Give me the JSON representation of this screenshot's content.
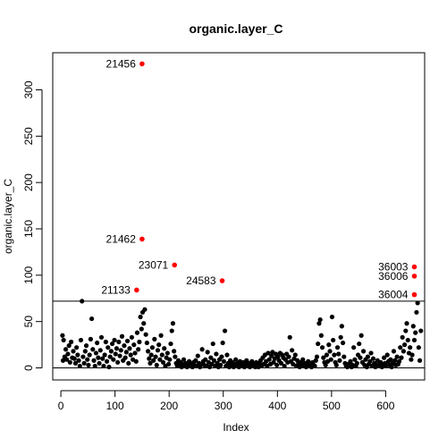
{
  "chart_data": {
    "type": "scatter",
    "title": "organic.layer_C",
    "xlabel": "Index",
    "ylabel": "organic.layer_C",
    "xlim": [
      -15,
      672
    ],
    "ylim": [
      -13,
      340
    ],
    "x_ticks": [
      0,
      100,
      200,
      300,
      400,
      500,
      600
    ],
    "y_ticks": [
      0,
      50,
      100,
      150,
      200,
      250,
      300
    ],
    "grid": false,
    "hlines": [
      0,
      72
    ],
    "colors": {
      "normal": "#000000",
      "outlier": "#ff0000"
    },
    "outliers": [
      {
        "x": 150,
        "y": 328,
        "label": "21456"
      },
      {
        "x": 150,
        "y": 139,
        "label": "21462"
      },
      {
        "x": 210,
        "y": 111,
        "label": "23071"
      },
      {
        "x": 298,
        "y": 94,
        "label": "24583"
      },
      {
        "x": 140,
        "y": 84,
        "label": "21133"
      },
      {
        "x": 653,
        "y": 109,
        "label": "36003"
      },
      {
        "x": 653,
        "y": 99,
        "label": "36006"
      },
      {
        "x": 653,
        "y": 79,
        "label": "36004"
      }
    ],
    "points": [
      [
        3,
        35
      ],
      [
        4,
        8
      ],
      [
        5,
        30
      ],
      [
        7,
        12
      ],
      [
        9,
        20
      ],
      [
        11,
        9
      ],
      [
        13,
        15
      ],
      [
        15,
        24
      ],
      [
        17,
        6
      ],
      [
        19,
        28
      ],
      [
        21,
        11
      ],
      [
        23,
        18
      ],
      [
        25,
        10
      ],
      [
        27,
        5
      ],
      [
        29,
        22
      ],
      [
        31,
        14
      ],
      [
        33,
        8
      ],
      [
        35,
        2
      ],
      [
        37,
        30
      ],
      [
        39,
        72
      ],
      [
        41,
        12
      ],
      [
        43,
        5
      ],
      [
        45,
        18
      ],
      [
        47,
        24
      ],
      [
        49,
        9
      ],
      [
        51,
        3
      ],
      [
        53,
        14
      ],
      [
        55,
        31
      ],
      [
        57,
        53
      ],
      [
        59,
        20
      ],
      [
        61,
        8
      ],
      [
        63,
        2
      ],
      [
        65,
        16
      ],
      [
        67,
        27
      ],
      [
        69,
        11
      ],
      [
        71,
        5
      ],
      [
        73,
        19
      ],
      [
        75,
        33
      ],
      [
        77,
        10
      ],
      [
        79,
        2
      ],
      [
        81,
        14
      ],
      [
        83,
        28
      ],
      [
        85,
        7
      ],
      [
        87,
        22
      ],
      [
        89,
        1
      ],
      [
        91,
        12
      ],
      [
        93,
        18
      ],
      [
        95,
        26
      ],
      [
        97,
        9
      ],
      [
        99,
        30
      ],
      [
        101,
        15
      ],
      [
        103,
        21
      ],
      [
        105,
        6
      ],
      [
        107,
        28
      ],
      [
        109,
        13
      ],
      [
        111,
        19
      ],
      [
        113,
        34
      ],
      [
        115,
        8
      ],
      [
        117,
        24
      ],
      [
        119,
        11
      ],
      [
        121,
        17
      ],
      [
        123,
        29
      ],
      [
        125,
        5
      ],
      [
        127,
        21
      ],
      [
        129,
        14
      ],
      [
        131,
        33
      ],
      [
        133,
        9
      ],
      [
        135,
        25
      ],
      [
        137,
        16
      ],
      [
        139,
        7
      ],
      [
        141,
        38
      ],
      [
        143,
        20
      ],
      [
        145,
        28
      ],
      [
        147,
        55
      ],
      [
        149,
        42
      ],
      [
        151,
        60
      ],
      [
        153,
        48
      ],
      [
        155,
        63
      ],
      [
        157,
        36
      ],
      [
        159,
        27
      ],
      [
        161,
        18
      ],
      [
        163,
        10
      ],
      [
        165,
        5
      ],
      [
        167,
        14
      ],
      [
        169,
        22
      ],
      [
        171,
        8
      ],
      [
        173,
        31
      ],
      [
        175,
        12
      ],
      [
        177,
        3
      ],
      [
        179,
        19
      ],
      [
        181,
        25
      ],
      [
        183,
        9
      ],
      [
        185,
        35
      ],
      [
        187,
        14
      ],
      [
        189,
        6
      ],
      [
        191,
        21
      ],
      [
        193,
        2
      ],
      [
        195,
        11
      ],
      [
        197,
        16
      ],
      [
        199,
        4
      ],
      [
        201,
        9
      ],
      [
        203,
        26
      ],
      [
        205,
        40
      ],
      [
        207,
        48
      ],
      [
        209,
        18
      ],
      [
        211,
        12
      ],
      [
        213,
        5
      ],
      [
        215,
        2
      ],
      [
        217,
        8
      ],
      [
        219,
        3
      ],
      [
        221,
        6
      ],
      [
        223,
        1
      ],
      [
        225,
        4
      ],
      [
        227,
        9
      ],
      [
        229,
        2
      ],
      [
        231,
        5
      ],
      [
        233,
        1
      ],
      [
        235,
        3
      ],
      [
        237,
        7
      ],
      [
        239,
        2
      ],
      [
        241,
        4
      ],
      [
        243,
        1
      ],
      [
        245,
        6
      ],
      [
        247,
        3
      ],
      [
        249,
        8
      ],
      [
        251,
        2
      ],
      [
        253,
        13
      ],
      [
        255,
        5
      ],
      [
        257,
        1
      ],
      [
        259,
        4
      ],
      [
        261,
        20
      ],
      [
        263,
        7
      ],
      [
        265,
        3
      ],
      [
        267,
        9
      ],
      [
        269,
        2
      ],
      [
        271,
        17
      ],
      [
        273,
        6
      ],
      [
        275,
        1
      ],
      [
        277,
        11
      ],
      [
        279,
        4
      ],
      [
        281,
        26
      ],
      [
        283,
        8
      ],
      [
        285,
        2
      ],
      [
        287,
        15
      ],
      [
        289,
        5
      ],
      [
        291,
        1
      ],
      [
        293,
        9
      ],
      [
        295,
        3
      ],
      [
        297,
        12
      ],
      [
        299,
        27
      ],
      [
        301,
        7
      ],
      [
        303,
        40
      ],
      [
        305,
        2
      ],
      [
        307,
        14
      ],
      [
        309,
        5
      ],
      [
        311,
        1
      ],
      [
        313,
        8
      ],
      [
        315,
        3
      ],
      [
        317,
        6
      ],
      [
        319,
        1
      ],
      [
        321,
        4
      ],
      [
        323,
        9
      ],
      [
        325,
        2
      ],
      [
        327,
        5
      ],
      [
        329,
        1
      ],
      [
        331,
        7
      ],
      [
        333,
        3
      ],
      [
        335,
        2
      ],
      [
        337,
        6
      ],
      [
        339,
        1
      ],
      [
        341,
        4
      ],
      [
        343,
        8
      ],
      [
        345,
        2
      ],
      [
        347,
        5
      ],
      [
        349,
        1
      ],
      [
        351,
        3
      ],
      [
        353,
        7
      ],
      [
        355,
        2
      ],
      [
        357,
        4
      ],
      [
        359,
        1
      ],
      [
        361,
        6
      ],
      [
        363,
        3
      ],
      [
        365,
        1
      ],
      [
        367,
        5
      ],
      [
        369,
        8
      ],
      [
        371,
        2
      ],
      [
        373,
        11
      ],
      [
        375,
        4
      ],
      [
        377,
        14
      ],
      [
        379,
        7
      ],
      [
        381,
        2
      ],
      [
        383,
        16
      ],
      [
        385,
        9
      ],
      [
        387,
        4
      ],
      [
        389,
        13
      ],
      [
        391,
        17
      ],
      [
        393,
        6
      ],
      [
        395,
        10
      ],
      [
        397,
        15
      ],
      [
        399,
        3
      ],
      [
        401,
        12
      ],
      [
        403,
        8
      ],
      [
        405,
        16
      ],
      [
        407,
        5
      ],
      [
        409,
        14
      ],
      [
        411,
        11
      ],
      [
        413,
        2
      ],
      [
        415,
        9
      ],
      [
        417,
        15
      ],
      [
        419,
        6
      ],
      [
        421,
        12
      ],
      [
        423,
        33
      ],
      [
        425,
        7
      ],
      [
        427,
        19
      ],
      [
        429,
        4
      ],
      [
        431,
        10
      ],
      [
        433,
        14
      ],
      [
        435,
        2
      ],
      [
        437,
        8
      ],
      [
        439,
        5
      ],
      [
        441,
        1
      ],
      [
        443,
        6
      ],
      [
        445,
        3
      ],
      [
        447,
        9
      ],
      [
        449,
        2
      ],
      [
        451,
        5
      ],
      [
        453,
        1
      ],
      [
        455,
        4
      ],
      [
        457,
        7
      ],
      [
        459,
        2
      ],
      [
        461,
        3
      ],
      [
        463,
        1
      ],
      [
        465,
        6
      ],
      [
        467,
        3
      ],
      [
        469,
        2
      ],
      [
        471,
        8
      ],
      [
        473,
        12
      ],
      [
        475,
        26
      ],
      [
        477,
        48
      ],
      [
        479,
        52
      ],
      [
        481,
        35
      ],
      [
        483,
        22
      ],
      [
        485,
        11
      ],
      [
        487,
        6
      ],
      [
        489,
        3
      ],
      [
        491,
        14
      ],
      [
        493,
        7
      ],
      [
        495,
        25
      ],
      [
        497,
        18
      ],
      [
        499,
        9
      ],
      [
        501,
        55
      ],
      [
        503,
        30
      ],
      [
        505,
        14
      ],
      [
        507,
        6
      ],
      [
        509,
        3
      ],
      [
        511,
        22
      ],
      [
        513,
        15
      ],
      [
        515,
        8
      ],
      [
        517,
        33
      ],
      [
        519,
        45
      ],
      [
        521,
        27
      ],
      [
        523,
        12
      ],
      [
        525,
        5
      ],
      [
        527,
        2
      ],
      [
        529,
        1
      ],
      [
        531,
        4
      ],
      [
        533,
        2
      ],
      [
        535,
        7
      ],
      [
        537,
        1
      ],
      [
        539,
        3
      ],
      [
        541,
        22
      ],
      [
        543,
        9
      ],
      [
        545,
        2
      ],
      [
        547,
        5
      ],
      [
        549,
        14
      ],
      [
        551,
        26
      ],
      [
        553,
        11
      ],
      [
        555,
        35
      ],
      [
        557,
        6
      ],
      [
        559,
        18
      ],
      [
        561,
        3
      ],
      [
        563,
        9
      ],
      [
        565,
        1
      ],
      [
        567,
        12
      ],
      [
        569,
        4
      ],
      [
        571,
        7
      ],
      [
        573,
        16
      ],
      [
        575,
        2
      ],
      [
        577,
        10
      ],
      [
        579,
        5
      ],
      [
        581,
        1
      ],
      [
        583,
        3
      ],
      [
        585,
        8
      ],
      [
        587,
        2
      ],
      [
        589,
        4
      ],
      [
        591,
        6
      ],
      [
        593,
        1
      ],
      [
        595,
        3
      ],
      [
        597,
        11
      ],
      [
        599,
        5
      ],
      [
        601,
        2
      ],
      [
        603,
        14
      ],
      [
        605,
        7
      ],
      [
        607,
        3
      ],
      [
        609,
        9
      ],
      [
        611,
        1
      ],
      [
        613,
        5
      ],
      [
        615,
        18
      ],
      [
        617,
        8
      ],
      [
        619,
        3
      ],
      [
        621,
        12
      ],
      [
        623,
        4
      ],
      [
        625,
        7
      ],
      [
        627,
        22
      ],
      [
        629,
        11
      ],
      [
        631,
        33
      ],
      [
        633,
        18
      ],
      [
        635,
        25
      ],
      [
        637,
        40
      ],
      [
        639,
        48
      ],
      [
        641,
        30
      ],
      [
        643,
        16
      ],
      [
        645,
        22
      ],
      [
        647,
        9
      ],
      [
        649,
        14
      ],
      [
        651,
        45
      ],
      [
        653,
        30
      ],
      [
        655,
        38
      ],
      [
        657,
        60
      ],
      [
        659,
        70
      ],
      [
        661,
        22
      ],
      [
        663,
        8
      ],
      [
        665,
        40
      ]
    ]
  }
}
